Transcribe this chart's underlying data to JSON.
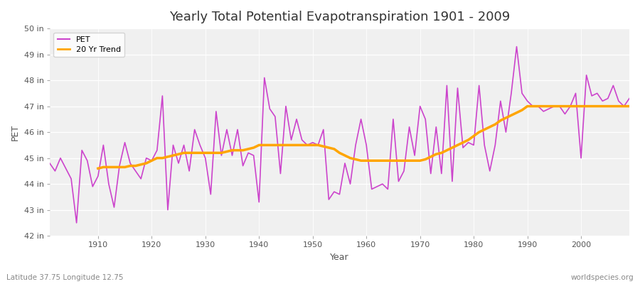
{
  "title": "Yearly Total Potential Evapotranspiration 1901 - 2009",
  "xlabel": "Year",
  "ylabel": "PET",
  "footnote_left": "Latitude 37.75 Longitude 12.75",
  "footnote_right": "worldspecies.org",
  "legend_pet": "PET",
  "legend_trend": "20 Yr Trend",
  "pet_color": "#cc44cc",
  "trend_color": "#ffa500",
  "background_color": "#ffffff",
  "plot_bg_color": "#f0f0f0",
  "ylim": [
    42,
    50
  ],
  "yticks": [
    42,
    43,
    44,
    45,
    46,
    47,
    48,
    49,
    50
  ],
  "ytick_labels": [
    "42 in",
    "43 in",
    "44 in",
    "45 in",
    "46 in",
    "47 in",
    "48 in",
    "49 in",
    "50 in"
  ],
  "years": [
    1901,
    1902,
    1903,
    1904,
    1905,
    1906,
    1907,
    1908,
    1909,
    1910,
    1911,
    1912,
    1913,
    1914,
    1915,
    1916,
    1917,
    1918,
    1919,
    1920,
    1921,
    1922,
    1923,
    1924,
    1925,
    1926,
    1927,
    1928,
    1929,
    1930,
    1931,
    1932,
    1933,
    1934,
    1935,
    1936,
    1937,
    1938,
    1939,
    1940,
    1941,
    1942,
    1943,
    1944,
    1945,
    1946,
    1947,
    1948,
    1949,
    1950,
    1951,
    1952,
    1953,
    1954,
    1955,
    1956,
    1957,
    1958,
    1959,
    1960,
    1961,
    1962,
    1963,
    1964,
    1965,
    1966,
    1967,
    1968,
    1969,
    1970,
    1971,
    1972,
    1973,
    1974,
    1975,
    1976,
    1977,
    1978,
    1979,
    1980,
    1981,
    1982,
    1983,
    1984,
    1985,
    1986,
    1987,
    1988,
    1989,
    1990,
    1991,
    1992,
    1993,
    1994,
    1995,
    1996,
    1997,
    1998,
    1999,
    2000,
    2001,
    2002,
    2003,
    2004,
    2005,
    2006,
    2007,
    2008,
    2009
  ],
  "pet_values": [
    44.8,
    44.5,
    45.0,
    44.6,
    44.2,
    42.5,
    45.3,
    44.9,
    43.9,
    44.3,
    45.5,
    44.0,
    43.1,
    44.7,
    45.6,
    44.8,
    44.5,
    44.2,
    45.0,
    44.9,
    45.3,
    47.4,
    43.0,
    45.5,
    44.8,
    45.5,
    44.5,
    46.1,
    45.5,
    45.0,
    43.6,
    46.8,
    45.1,
    46.1,
    45.1,
    46.1,
    44.7,
    45.2,
    45.1,
    43.3,
    48.1,
    46.9,
    46.6,
    44.4,
    47.0,
    45.7,
    46.5,
    45.7,
    45.5,
    45.6,
    45.5,
    46.1,
    43.4,
    43.7,
    43.6,
    44.8,
    44.0,
    45.5,
    46.5,
    45.5,
    43.8,
    43.9,
    44.0,
    43.8,
    46.5,
    44.1,
    44.5,
    46.2,
    45.1,
    47.0,
    46.5,
    44.4,
    46.2,
    44.4,
    47.8,
    44.1,
    47.7,
    45.4,
    45.6,
    45.5,
    47.8,
    45.5,
    44.5,
    45.5,
    47.2,
    46.0,
    47.5,
    49.3,
    47.5,
    47.2,
    47.0,
    47.0,
    46.8,
    46.9,
    47.0,
    47.0,
    46.7,
    47.0,
    47.5,
    45.0,
    48.2,
    47.4,
    47.5,
    47.2,
    47.3,
    47.8,
    47.2,
    47.0,
    47.3
  ],
  "trend_years": [
    1910,
    1911,
    1912,
    1913,
    1914,
    1915,
    1916,
    1917,
    1918,
    1919,
    1920,
    1921,
    1922,
    1923,
    1924,
    1925,
    1926,
    1927,
    1928,
    1929,
    1930,
    1931,
    1932,
    1933,
    1934,
    1935,
    1936,
    1937,
    1938,
    1939,
    1940,
    1941,
    1942,
    1943,
    1944,
    1945,
    1946,
    1947,
    1948,
    1949,
    1950,
    1951,
    1952,
    1953,
    1954,
    1955,
    1956,
    1957,
    1958,
    1959,
    1960,
    1961,
    1962,
    1963,
    1964,
    1965,
    1966,
    1967,
    1968,
    1969,
    1970,
    1971,
    1972,
    1973,
    1974,
    1975,
    1976,
    1977,
    1978,
    1979,
    1980,
    1981,
    1982,
    1983,
    1984,
    1985,
    1986,
    1987,
    1988,
    1989,
    1990,
    1991,
    1992,
    1993,
    1994,
    1995,
    1996,
    1997,
    1998,
    1999,
    2000,
    2001,
    2002,
    2003,
    2004,
    2005,
    2006,
    2007,
    2008,
    2009
  ],
  "trend_values": [
    44.6,
    44.65,
    44.65,
    44.65,
    44.65,
    44.65,
    44.7,
    44.7,
    44.75,
    44.8,
    44.9,
    45.0,
    45.0,
    45.05,
    45.1,
    45.15,
    45.2,
    45.2,
    45.2,
    45.2,
    45.2,
    45.2,
    45.2,
    45.2,
    45.25,
    45.3,
    45.3,
    45.3,
    45.35,
    45.4,
    45.5,
    45.5,
    45.5,
    45.5,
    45.5,
    45.5,
    45.5,
    45.5,
    45.5,
    45.5,
    45.5,
    45.5,
    45.45,
    45.4,
    45.35,
    45.2,
    45.1,
    45.0,
    44.95,
    44.9,
    44.9,
    44.9,
    44.9,
    44.9,
    44.9,
    44.9,
    44.9,
    44.9,
    44.9,
    44.9,
    44.9,
    44.95,
    45.05,
    45.15,
    45.2,
    45.3,
    45.4,
    45.5,
    45.6,
    45.7,
    45.85,
    46.0,
    46.1,
    46.2,
    46.3,
    46.45,
    46.55,
    46.65,
    46.75,
    46.85,
    47.0,
    47.0,
    47.0,
    47.0,
    47.0,
    47.0,
    47.0,
    47.0,
    47.0,
    47.0,
    47.0,
    47.0,
    47.0,
    47.0,
    47.0,
    47.0,
    47.0,
    47.0,
    47.0,
    47.0
  ]
}
